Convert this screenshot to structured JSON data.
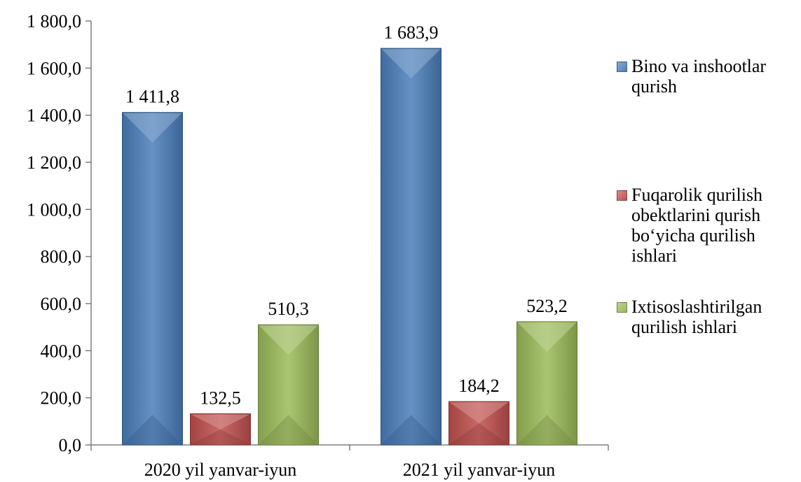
{
  "chart_data": {
    "type": "bar",
    "categories": [
      "2020 yil yanvar-iyun",
      "2021 yil yanvar-iyun"
    ],
    "series": [
      {
        "name": "Bino va inshootlar qurish",
        "values": [
          1411.8,
          1683.9
        ],
        "color": "#4a7ebb",
        "labels": [
          "1 411,8",
          "1 683,9"
        ]
      },
      {
        "name": "Fuqarolik qurilish obektlarini qurish bo‘yicha qurilish ishlari",
        "values": [
          132.5,
          184.2
        ],
        "color": "#c0504d",
        "labels": [
          "132,5",
          "184,2"
        ]
      },
      {
        "name": "Ixtisoslashtirilgan qurilish ishlari",
        "values": [
          510.3,
          523.2
        ],
        "color": "#9bbb59",
        "labels": [
          "510,3",
          "523,2"
        ]
      }
    ],
    "ylim": [
      0,
      1800
    ],
    "yticks": [
      0,
      200,
      400,
      600,
      800,
      1000,
      1200,
      1400,
      1600,
      1800
    ],
    "ytick_labels": [
      "0,0",
      "200,0",
      "400,0",
      "600,0",
      "800,0",
      "1 000,0",
      "1 200,0",
      "1 400,0",
      "1 600,0",
      "1 800,0"
    ],
    "title": "",
    "xlabel": "",
    "ylabel": "",
    "grid": false,
    "legend_position": "right"
  },
  "legend": {
    "items": [
      {
        "label": "Bino va inshootlar\nqurish",
        "color": "#4a7ebb"
      },
      {
        "label": "Fuqarolik qurilish\nobektlarini qurish\nbo‘yicha qurilish\nishlari",
        "color": "#c0504d"
      },
      {
        "label": "Ixtisoslashtirilgan\nqurilish ishlari",
        "color": "#9bbb59"
      }
    ]
  }
}
